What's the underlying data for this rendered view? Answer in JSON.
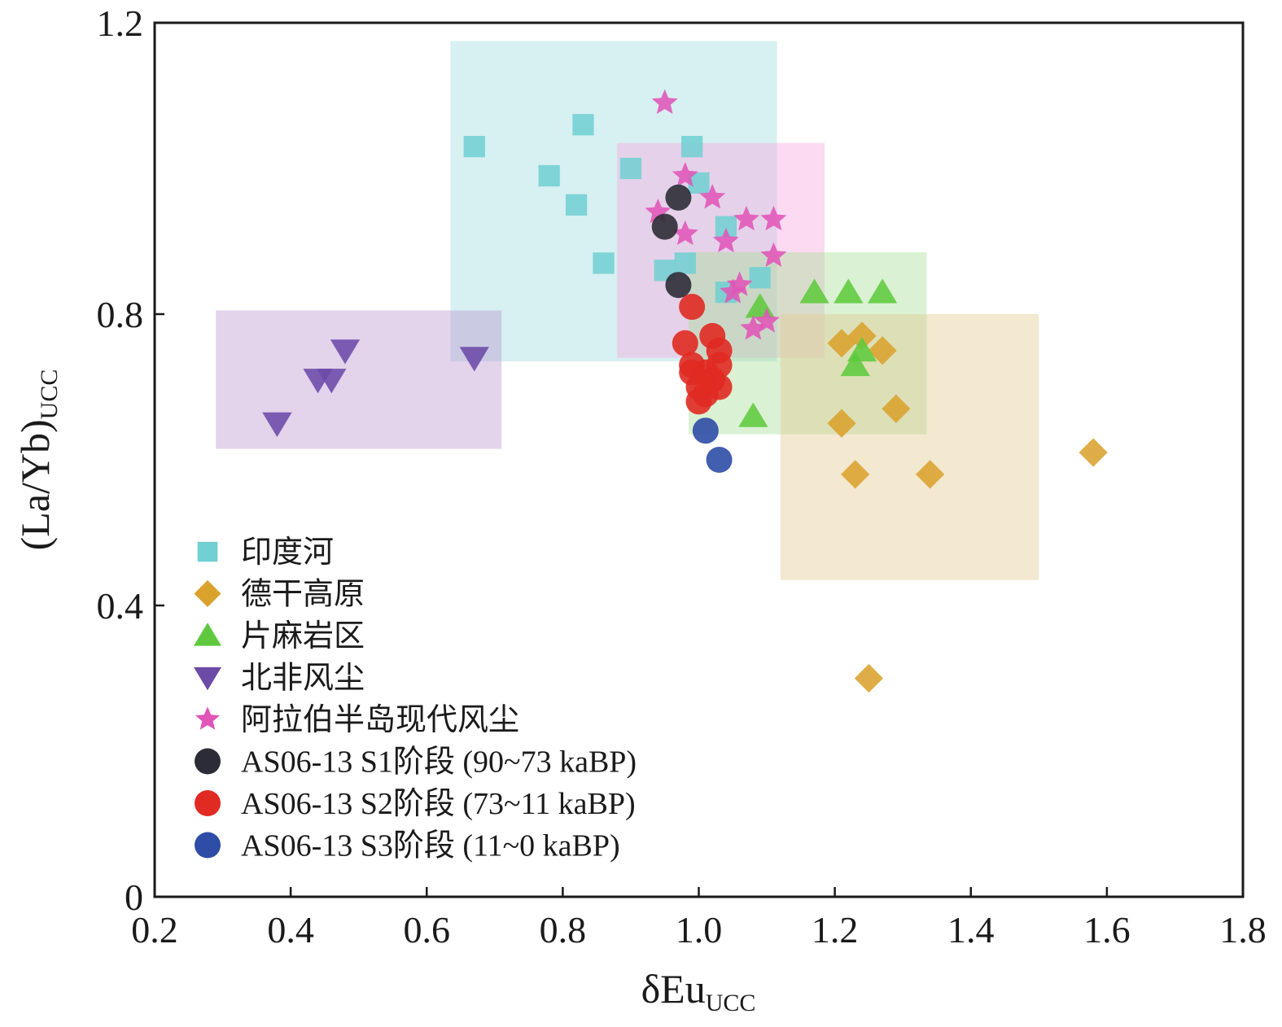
{
  "chart_data": {
    "type": "scatter",
    "xlabel": "δEu",
    "xlabel_sub": "UCC",
    "ylabel": "(La/Yb)",
    "ylabel_sub": "UCC",
    "xlim": [
      0.2,
      1.8
    ],
    "ylim": [
      0,
      1.2
    ],
    "xticks": [
      0.2,
      0.4,
      0.6,
      0.8,
      1.0,
      1.2,
      1.4,
      1.6,
      1.8
    ],
    "xtick_labels": [
      "0.2",
      "0.4",
      "0.6",
      "0.8",
      "1.0",
      "1.2",
      "1.4",
      "1.6",
      "1.8"
    ],
    "yticks": [
      0,
      0.4,
      0.8,
      1.2
    ],
    "ytick_labels": [
      "0",
      "0.4",
      "0.8",
      "1.2"
    ],
    "grid": false,
    "legend_position": "lower-left",
    "regions": [
      {
        "series": "印度河",
        "x": [
          0.635,
          1.115
        ],
        "y": [
          0.735,
          1.175
        ],
        "color": "#9fdcdf",
        "opacity": 0.42
      },
      {
        "series": "阿拉伯半岛现代风尘",
        "x": [
          0.88,
          1.185
        ],
        "y": [
          0.74,
          1.035
        ],
        "color": "#f7a8dd",
        "opacity": 0.42
      },
      {
        "series": "北非风尘",
        "x": [
          0.29,
          0.71
        ],
        "y": [
          0.615,
          0.805
        ],
        "color": "#b892cc",
        "opacity": 0.4
      },
      {
        "series": "片麻岩区",
        "x": [
          0.985,
          1.335
        ],
        "y": [
          0.635,
          0.885
        ],
        "color": "#a8e096",
        "opacity": 0.42
      },
      {
        "series": "德干高原",
        "x": [
          1.12,
          1.5
        ],
        "y": [
          0.435,
          0.8
        ],
        "color": "#e3c98f",
        "opacity": 0.42
      }
    ],
    "series": [
      {
        "name": "印度河",
        "marker": "square",
        "color": "#72cfd2",
        "points": [
          [
            0.67,
            1.03
          ],
          [
            0.83,
            1.06
          ],
          [
            0.99,
            1.03
          ],
          [
            0.78,
            0.99
          ],
          [
            0.9,
            1.0
          ],
          [
            1.0,
            0.98
          ],
          [
            0.82,
            0.95
          ],
          [
            1.04,
            0.92
          ],
          [
            0.86,
            0.87
          ],
          [
            0.95,
            0.86
          ],
          [
            0.98,
            0.87
          ],
          [
            1.04,
            0.83
          ],
          [
            1.09,
            0.85
          ]
        ]
      },
      {
        "name": "德干高原",
        "marker": "diamond",
        "color": "#d9a22d",
        "points": [
          [
            1.21,
            0.76
          ],
          [
            1.24,
            0.77
          ],
          [
            1.27,
            0.75
          ],
          [
            1.21,
            0.65
          ],
          [
            1.29,
            0.67
          ],
          [
            1.23,
            0.58
          ],
          [
            1.34,
            0.58
          ],
          [
            1.58,
            0.61
          ],
          [
            1.25,
            0.3
          ]
        ]
      },
      {
        "name": "片麻岩区",
        "marker": "triangle-up",
        "color": "#5ec93e",
        "points": [
          [
            1.17,
            0.83
          ],
          [
            1.22,
            0.83
          ],
          [
            1.27,
            0.83
          ],
          [
            1.09,
            0.81
          ],
          [
            1.24,
            0.75
          ],
          [
            1.23,
            0.73
          ],
          [
            1.08,
            0.66
          ]
        ]
      },
      {
        "name": "北非风尘",
        "marker": "triangle-down",
        "color": "#6b4aa8",
        "points": [
          [
            0.38,
            0.65
          ],
          [
            0.44,
            0.71
          ],
          [
            0.46,
            0.71
          ],
          [
            0.48,
            0.75
          ],
          [
            0.67,
            0.74
          ]
        ]
      },
      {
        "name": "阿拉伯半岛现代风尘",
        "marker": "star",
        "color": "#e055b7",
        "points": [
          [
            0.95,
            1.09
          ],
          [
            0.98,
            0.99
          ],
          [
            1.02,
            0.96
          ],
          [
            0.94,
            0.94
          ],
          [
            1.07,
            0.93
          ],
          [
            1.11,
            0.93
          ],
          [
            0.98,
            0.91
          ],
          [
            1.04,
            0.9
          ],
          [
            1.11,
            0.88
          ],
          [
            1.06,
            0.84
          ],
          [
            1.05,
            0.83
          ],
          [
            1.1,
            0.79
          ],
          [
            1.08,
            0.78
          ]
        ]
      },
      {
        "name": "AS06-13 S1阶段 (90~73 kaBP)",
        "marker": "circle",
        "color": "#2c2c36",
        "points": [
          [
            0.97,
            0.96
          ],
          [
            0.95,
            0.92
          ],
          [
            0.97,
            0.84
          ]
        ]
      },
      {
        "name": "AS06-13 S2阶段 (73~11 kaBP)",
        "marker": "circle",
        "color": "#e02a22",
        "points": [
          [
            0.99,
            0.81
          ],
          [
            0.98,
            0.76
          ],
          [
            1.02,
            0.77
          ],
          [
            1.03,
            0.75
          ],
          [
            0.99,
            0.73
          ],
          [
            1.01,
            0.72
          ],
          [
            1.03,
            0.73
          ],
          [
            0.99,
            0.72
          ],
          [
            1.02,
            0.71
          ],
          [
            1.0,
            0.7
          ],
          [
            1.03,
            0.7
          ],
          [
            1.01,
            0.69
          ],
          [
            1.0,
            0.68
          ]
        ]
      },
      {
        "name": "AS06-13 S3阶段 (11~0 kaBP)",
        "marker": "circle",
        "color": "#2e4da6",
        "points": [
          [
            1.01,
            0.64
          ],
          [
            1.03,
            0.6
          ]
        ]
      }
    ]
  }
}
